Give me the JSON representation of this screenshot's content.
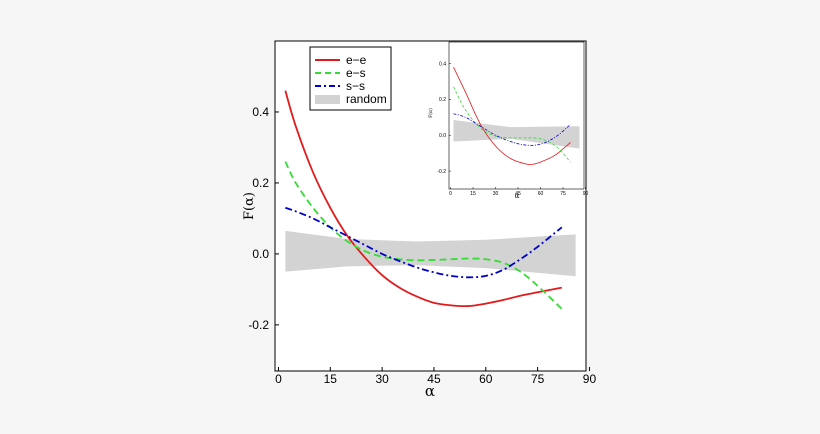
{
  "chart_data": [
    {
      "type": "line",
      "xlabel": "α",
      "ylabel": "F(α)",
      "xlim": [
        -1,
        89
      ],
      "ylim": [
        -0.33,
        0.6
      ],
      "xticks": [
        0,
        15,
        30,
        45,
        60,
        75,
        90
      ],
      "yticks": [
        -0.2,
        0.0,
        0.2,
        0.4
      ],
      "ytick_labels": [
        "-0.2",
        "0.0",
        "0.2",
        "0.4"
      ],
      "grid": false,
      "legend_position": "top-left",
      "series": [
        {
          "name": "e−e",
          "style": "solid",
          "color": "#e31a1c",
          "x": [
            2,
            5,
            10,
            15,
            20,
            25,
            30,
            35,
            40,
            45,
            50,
            55,
            60,
            65,
            70,
            75,
            82
          ],
          "y": [
            0.46,
            0.36,
            0.23,
            0.13,
            0.05,
            -0.01,
            -0.06,
            -0.095,
            -0.12,
            -0.138,
            -0.145,
            -0.147,
            -0.14,
            -0.13,
            -0.118,
            -0.108,
            -0.095
          ]
        },
        {
          "name": "e−s",
          "style": "dashed",
          "color": "#33dd33",
          "x": [
            2,
            5,
            10,
            15,
            20,
            25,
            30,
            35,
            40,
            45,
            50,
            55,
            60,
            65,
            70,
            75,
            82
          ],
          "y": [
            0.26,
            0.2,
            0.13,
            0.075,
            0.035,
            0.008,
            -0.008,
            -0.015,
            -0.018,
            -0.017,
            -0.015,
            -0.013,
            -0.015,
            -0.025,
            -0.05,
            -0.09,
            -0.155
          ]
        },
        {
          "name": "s−s",
          "style": "dashdot",
          "color": "#0000cc",
          "x": [
            2,
            5,
            10,
            15,
            20,
            25,
            30,
            35,
            40,
            45,
            50,
            55,
            60,
            65,
            70,
            75,
            82
          ],
          "y": [
            0.13,
            0.12,
            0.1,
            0.075,
            0.05,
            0.025,
            0.0,
            -0.02,
            -0.038,
            -0.052,
            -0.062,
            -0.066,
            -0.062,
            -0.045,
            -0.015,
            0.02,
            0.075
          ]
        },
        {
          "name": "random",
          "type": "band",
          "color": "#d3d3d3",
          "x": [
            2,
            20,
            40,
            60,
            86
          ],
          "y_upper": [
            0.065,
            0.042,
            0.035,
            0.04,
            0.055
          ],
          "y_lower": [
            -0.05,
            -0.035,
            -0.032,
            -0.04,
            -0.063
          ]
        }
      ]
    },
    {
      "type": "line",
      "xlabel": "α",
      "ylabel": "F(α)",
      "xlim": [
        -1,
        89
      ],
      "ylim": [
        -0.3,
        0.52
      ],
      "xticks": [
        0,
        15,
        30,
        45,
        60,
        75,
        90
      ],
      "yticks": [
        -0.2,
        0.0,
        0.2,
        0.4
      ],
      "ytick_labels": [
        "-0.2",
        "0.0",
        "0.2",
        "0.4"
      ],
      "grid": false,
      "series": [
        {
          "name": "e−e",
          "style": "solid",
          "color": "#e31a1c",
          "x": [
            2,
            10,
            20,
            30,
            40,
            50,
            55,
            60,
            70,
            80
          ],
          "y": [
            0.38,
            0.24,
            0.06,
            -0.06,
            -0.13,
            -0.16,
            -0.162,
            -0.15,
            -0.11,
            -0.04
          ]
        },
        {
          "name": "e−s",
          "style": "dashed",
          "color": "#33dd33",
          "x": [
            2,
            10,
            20,
            30,
            40,
            50,
            60,
            70,
            80
          ],
          "y": [
            0.27,
            0.14,
            0.04,
            -0.005,
            -0.015,
            -0.015,
            -0.02,
            -0.06,
            -0.15
          ]
        },
        {
          "name": "s−s",
          "style": "dashdot",
          "color": "#0000cc",
          "x": [
            2,
            10,
            20,
            30,
            40,
            50,
            60,
            70,
            80
          ],
          "y": [
            0.12,
            0.1,
            0.05,
            0.0,
            -0.035,
            -0.055,
            -0.05,
            -0.01,
            0.06
          ]
        },
        {
          "name": "random",
          "type": "band",
          "color": "#d3d3d3",
          "x": [
            2,
            40,
            86
          ],
          "y_upper": [
            0.085,
            0.045,
            0.05
          ],
          "y_lower": [
            -0.035,
            -0.02,
            -0.075
          ]
        }
      ]
    }
  ]
}
